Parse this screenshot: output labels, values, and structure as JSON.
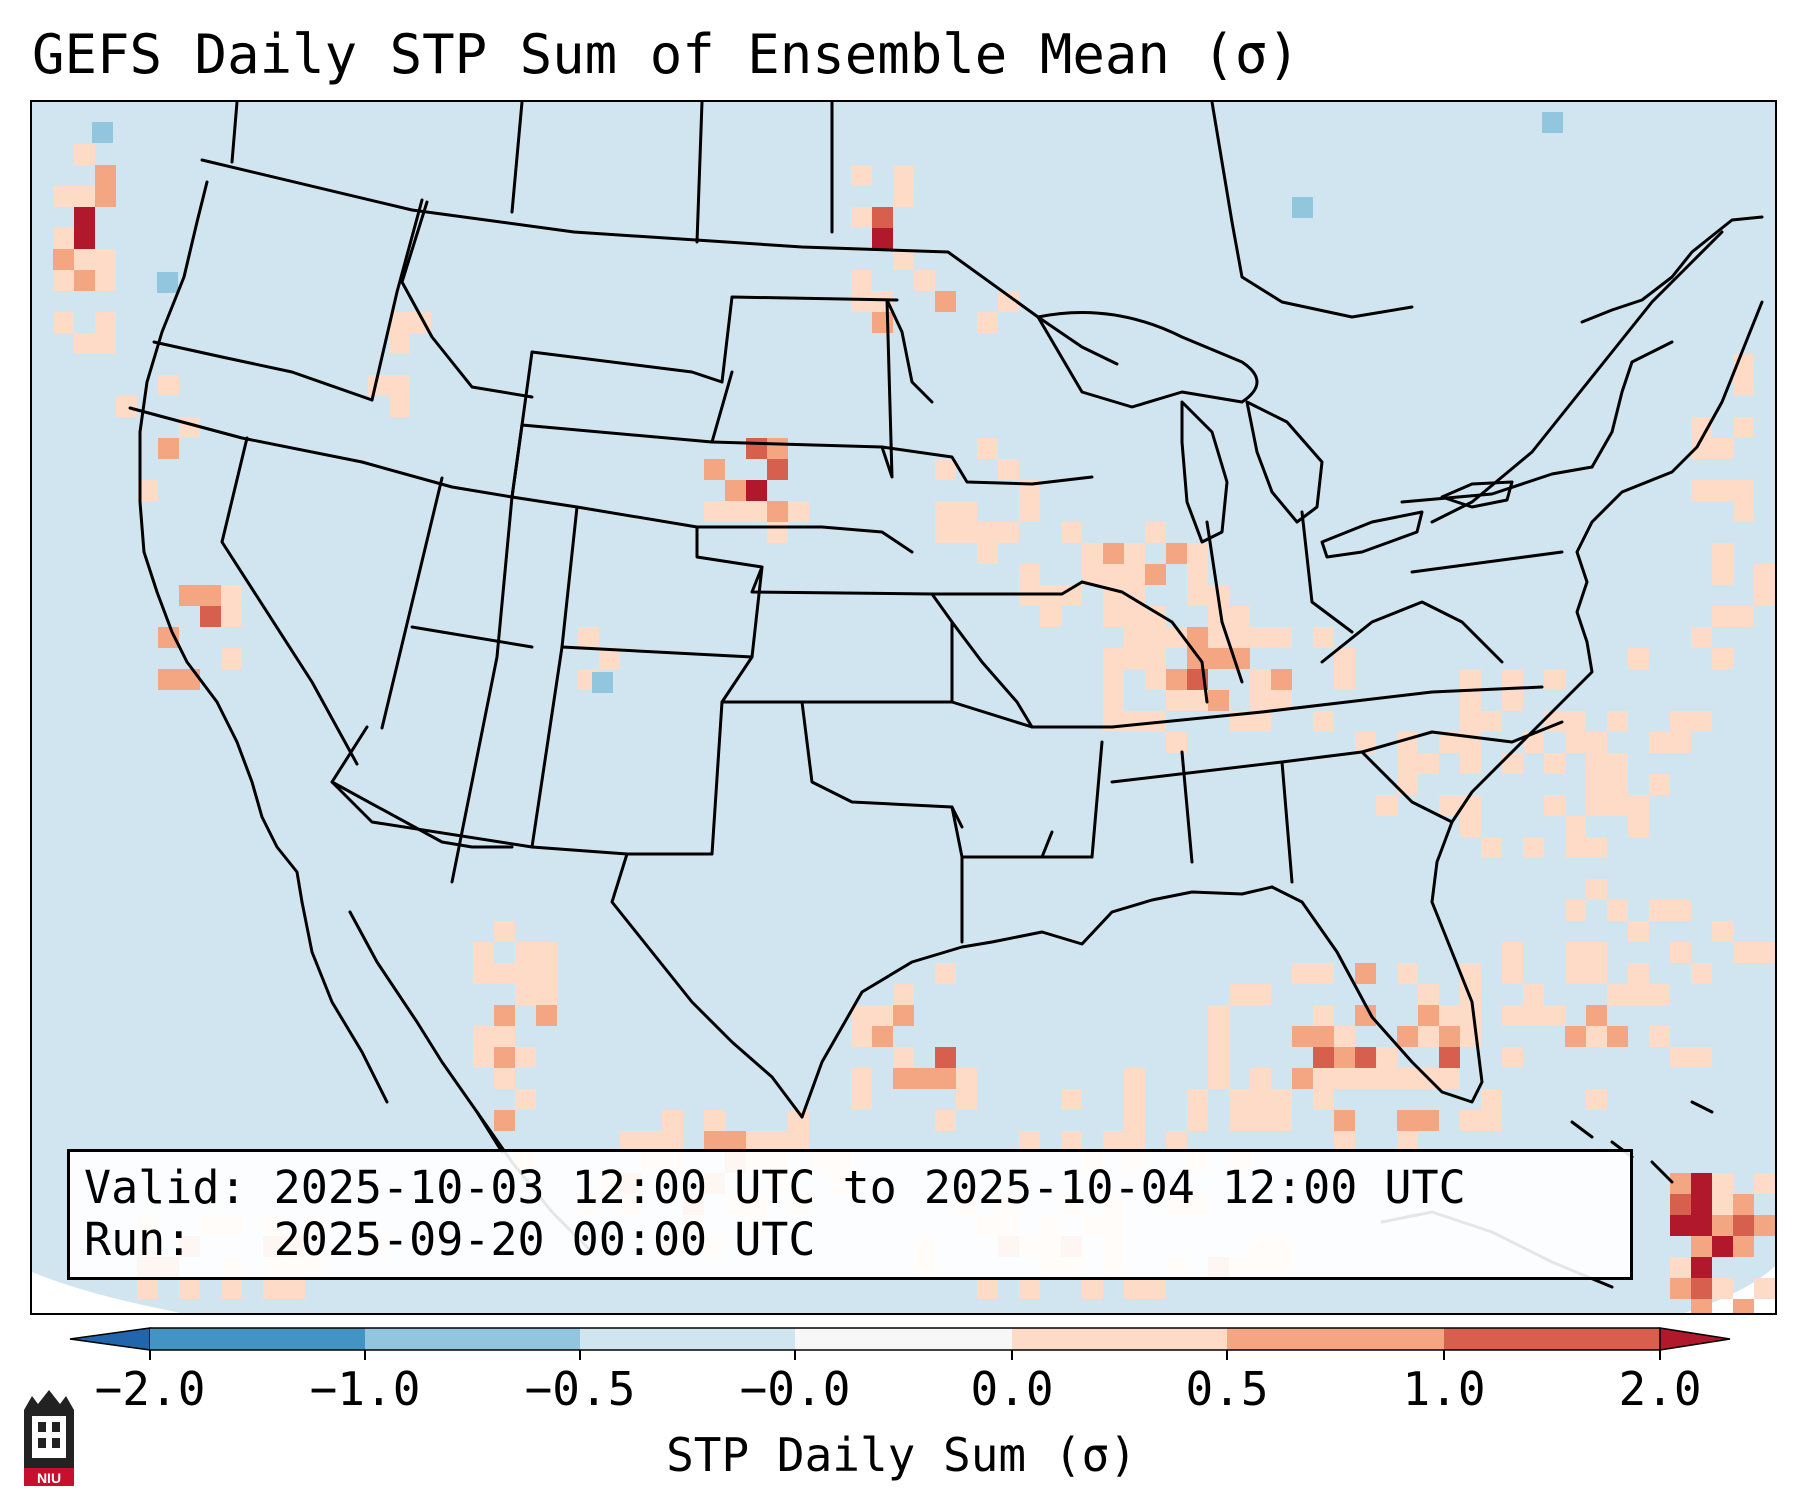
{
  "title": "GEFS Daily STP Sum of Ensemble Mean (σ)",
  "info": {
    "valid_line": "Valid: 2025-10-03 12:00 UTC to 2025-10-04 12:00 UTC",
    "run_line": "Run:   2025-09-20 00:00 UTC"
  },
  "colorbar": {
    "label": "STP Daily Sum (σ)",
    "ticks": [
      "−2.0",
      "−1.0",
      "−0.5",
      "−0.0",
      "0.0",
      "0.5",
      "1.0",
      "2.0"
    ],
    "bins": [
      {
        "range": "< -2.0",
        "color": "#2166ac"
      },
      {
        "range": "-2.0 to -1.0",
        "color": "#4393c3"
      },
      {
        "range": "-1.0 to -0.5",
        "color": "#92c5de"
      },
      {
        "range": "-0.5 to -0.0",
        "color": "#d1e5f0"
      },
      {
        "range": "-0.0 to 0.0",
        "color": "#f7f7f7"
      },
      {
        "range": "0.0 to 0.5",
        "color": "#fddbc7"
      },
      {
        "range": "0.5 to 1.0",
        "color": "#f4a582"
      },
      {
        "range": "1.0 to 2.0",
        "color": "#d6604d"
      },
      {
        "range": "> 2.0",
        "color": "#b2182b"
      }
    ]
  },
  "logo": {
    "text": "NIU",
    "color": "#c8102e"
  }
}
